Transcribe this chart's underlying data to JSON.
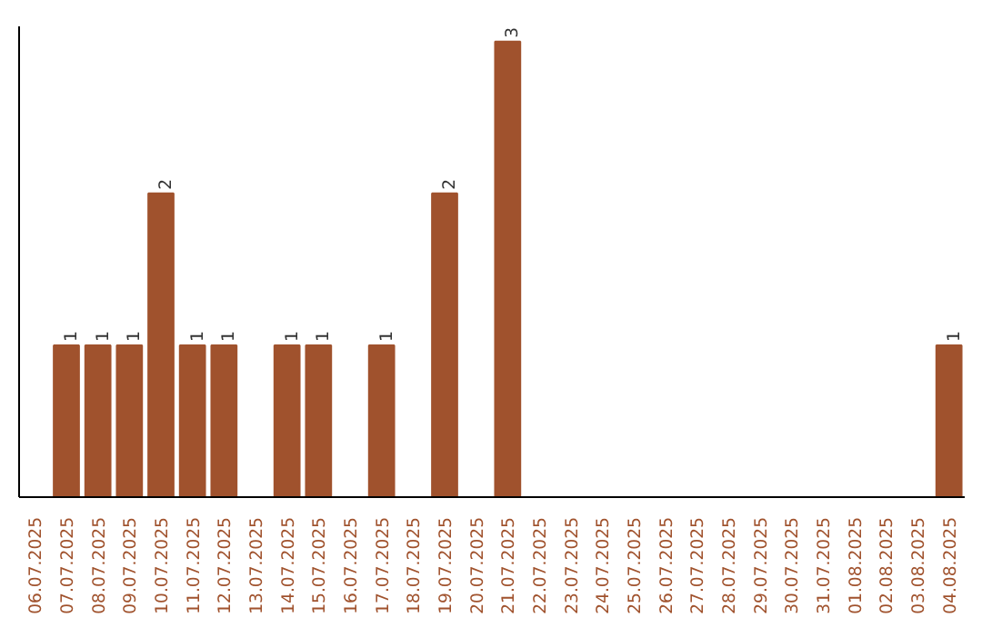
{
  "chart_data": {
    "type": "bar",
    "categories": [
      "06.07.2025",
      "07.07.2025",
      "08.07.2025",
      "09.07.2025",
      "10.07.2025",
      "11.07.2025",
      "12.07.2025",
      "13.07.2025",
      "14.07.2025",
      "15.07.2025",
      "16.07.2025",
      "17.07.2025",
      "18.07.2025",
      "19.07.2025",
      "20.07.2025",
      "21.07.2025",
      "22.07.2025",
      "23.07.2025",
      "24.07.2025",
      "25.07.2025",
      "26.07.2025",
      "27.07.2025",
      "28.07.2025",
      "29.07.2025",
      "30.07.2025",
      "31.07.2025",
      "01.08.2025",
      "02.08.2025",
      "03.08.2025",
      "04.08.2025"
    ],
    "values": [
      0,
      1,
      1,
      1,
      2,
      1,
      1,
      0,
      1,
      1,
      0,
      1,
      0,
      2,
      0,
      3,
      0,
      0,
      0,
      0,
      0,
      0,
      0,
      0,
      0,
      0,
      0,
      0,
      0,
      1
    ],
    "value_labels": [
      null,
      "1",
      "1",
      "1",
      "2",
      "1",
      "1",
      null,
      "1",
      "1",
      null,
      "1",
      null,
      "2",
      null,
      "3",
      null,
      null,
      null,
      null,
      null,
      null,
      null,
      null,
      null,
      null,
      null,
      null,
      null,
      "1"
    ],
    "color": "#a0522d",
    "ylim": [
      0,
      3.1
    ],
    "tick_labels": "x",
    "grid": false
  }
}
